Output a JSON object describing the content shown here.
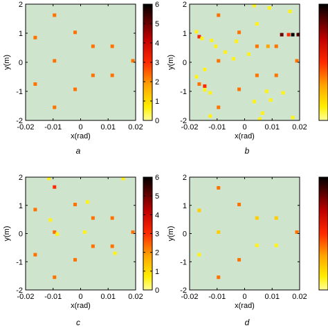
{
  "chart_data": [
    {
      "panel": "a",
      "type": "heatmap",
      "caption": "a",
      "xlabel": "x(rad)",
      "ylabel": "y(m)",
      "xlim": [
        -0.02,
        0.02
      ],
      "ylim": [
        -2,
        2
      ],
      "xticks": [
        "-0.02",
        "-0.01",
        "0",
        "0.01",
        "0.02"
      ],
      "yticks": [
        "2",
        "1",
        "0",
        "-1",
        "-2"
      ],
      "background_color": "#cfe4cc",
      "colorbar": {
        "min": 0,
        "max": 6,
        "ticks": [
          "6",
          "5",
          "4",
          "3",
          "2",
          "1",
          "0"
        ],
        "colormap": "hot_reversed"
      },
      "points": [
        {
          "x": -0.0095,
          "y": 1.62,
          "v": 2.3
        },
        {
          "x": -0.0165,
          "y": 0.85,
          "v": 2.3
        },
        {
          "x": -0.002,
          "y": 1.03,
          "v": 2.3
        },
        {
          "x": 0.0045,
          "y": 0.55,
          "v": 2.3
        },
        {
          "x": 0.0115,
          "y": 0.55,
          "v": 2.3
        },
        {
          "x": -0.0095,
          "y": 0.05,
          "v": 2.3
        },
        {
          "x": 0.019,
          "y": 0.05,
          "v": 2.3
        },
        {
          "x": 0.0045,
          "y": -0.45,
          "v": 2.3
        },
        {
          "x": 0.0115,
          "y": -0.45,
          "v": 2.3
        },
        {
          "x": -0.0165,
          "y": -0.75,
          "v": 2.3
        },
        {
          "x": -0.002,
          "y": -0.93,
          "v": 2.3
        },
        {
          "x": -0.0095,
          "y": -1.55,
          "v": 2.3
        }
      ]
    },
    {
      "panel": "b",
      "type": "heatmap",
      "caption": "b",
      "xlabel": "x(rad)",
      "ylabel": "y(m)",
      "xlim": [
        -0.02,
        0.02
      ],
      "ylim": [
        -2,
        2
      ],
      "xticks": [
        "-0.02",
        "-0.01",
        "0",
        "0.01",
        "0.02"
      ],
      "yticks": [
        "2",
        "1",
        "0",
        "-1",
        "-2"
      ],
      "background_color": "#cfe4cc",
      "colorbar": {
        "min": 0,
        "max": 6,
        "ticks": [],
        "colormap": "hot_reversed"
      },
      "points": [
        {
          "x": 0.0035,
          "y": 1.95,
          "v": 0.6
        },
        {
          "x": -0.0095,
          "y": 1.62,
          "v": 2.3
        },
        {
          "x": 0.009,
          "y": 1.87,
          "v": 0.6
        },
        {
          "x": 0.0165,
          "y": 1.75,
          "v": 0.6
        },
        {
          "x": -0.0175,
          "y": 1.05,
          "v": 0.6
        },
        {
          "x": -0.0165,
          "y": 0.88,
          "v": 3.2
        },
        {
          "x": -0.0155,
          "y": 0.82,
          "v": 0.6
        },
        {
          "x": -0.002,
          "y": 1.03,
          "v": 2.3
        },
        {
          "x": 0.0045,
          "y": 1.32,
          "v": 0.6
        },
        {
          "x": -0.012,
          "y": 0.75,
          "v": 0.6
        },
        {
          "x": -0.0105,
          "y": 0.55,
          "v": 0.6
        },
        {
          "x": -0.003,
          "y": 0.72,
          "v": 0.6
        },
        {
          "x": 0.0045,
          "y": 0.55,
          "v": 2.3
        },
        {
          "x": 0.0085,
          "y": 0.55,
          "v": 1.8
        },
        {
          "x": 0.0115,
          "y": 0.55,
          "v": 2.3
        },
        {
          "x": 0.0135,
          "y": 0.95,
          "v": 5.0
        },
        {
          "x": 0.016,
          "y": 0.95,
          "v": 3.0
        },
        {
          "x": 0.0175,
          "y": 0.95,
          "v": 6.0
        },
        {
          "x": 0.0195,
          "y": 0.95,
          "v": 5.2
        },
        {
          "x": -0.007,
          "y": 0.35,
          "v": 0.6
        },
        {
          "x": -0.0095,
          "y": 0.05,
          "v": 2.3
        },
        {
          "x": -0.004,
          "y": 0.12,
          "v": 0.6
        },
        {
          "x": 0.0015,
          "y": 0.28,
          "v": 0.6
        },
        {
          "x": 0.019,
          "y": 0.05,
          "v": 2.3
        },
        {
          "x": -0.0145,
          "y": -0.25,
          "v": 0.6
        },
        {
          "x": -0.0175,
          "y": -0.5,
          "v": 0.6
        },
        {
          "x": 0.0045,
          "y": -0.45,
          "v": 2.3
        },
        {
          "x": 0.0115,
          "y": -0.45,
          "v": 2.3
        },
        {
          "x": -0.0165,
          "y": -0.75,
          "v": 2.3
        },
        {
          "x": -0.0145,
          "y": -0.95,
          "v": 0.6
        },
        {
          "x": -0.002,
          "y": -0.93,
          "v": 2.3
        },
        {
          "x": -0.0145,
          "y": -0.82,
          "v": 3.0
        },
        {
          "x": -0.0125,
          "y": -1.05,
          "v": 0.6
        },
        {
          "x": 0.008,
          "y": -1.0,
          "v": 0.6
        },
        {
          "x": 0.014,
          "y": -1.05,
          "v": 0.6
        },
        {
          "x": 0.0095,
          "y": -1.3,
          "v": 0.6
        },
        {
          "x": 0.0035,
          "y": -1.35,
          "v": 0.6
        },
        {
          "x": -0.0095,
          "y": -1.55,
          "v": 2.3
        },
        {
          "x": -0.0125,
          "y": -1.85,
          "v": 0.6
        },
        {
          "x": 0.0065,
          "y": -1.75,
          "v": 0.6
        },
        {
          "x": 0.0055,
          "y": -1.95,
          "v": 0.6
        },
        {
          "x": 0.0175,
          "y": -1.9,
          "v": 0.6
        }
      ]
    },
    {
      "panel": "c",
      "type": "heatmap",
      "caption": "c",
      "xlabel": "x(rad)",
      "ylabel": "y(m)",
      "xlim": [
        -0.02,
        0.02
      ],
      "ylim": [
        -2,
        2
      ],
      "xticks": [
        "-0.02",
        "-0.01",
        "0",
        "0.01",
        "0.02"
      ],
      "yticks": [
        "2",
        "1",
        "0",
        "-1",
        "-2"
      ],
      "background_color": "#cfe4cc",
      "colorbar": {
        "min": 0,
        "max": 6,
        "ticks": [
          "6",
          "5",
          "4",
          "3",
          "2",
          "1",
          "0"
        ],
        "colormap": "hot_reversed"
      },
      "points": [
        {
          "x": -0.0115,
          "y": 1.95,
          "v": 0.6
        },
        {
          "x": 0.0155,
          "y": 1.95,
          "v": 0.6
        },
        {
          "x": -0.0095,
          "y": 1.65,
          "v": 3.0
        },
        {
          "x": -0.0165,
          "y": 0.85,
          "v": 2.3
        },
        {
          "x": -0.002,
          "y": 1.03,
          "v": 2.3
        },
        {
          "x": 0.0025,
          "y": 1.12,
          "v": 0.6
        },
        {
          "x": -0.011,
          "y": 0.48,
          "v": 0.6
        },
        {
          "x": 0.0045,
          "y": 0.55,
          "v": 2.3
        },
        {
          "x": 0.0115,
          "y": 0.55,
          "v": 2.3
        },
        {
          "x": -0.0095,
          "y": 0.05,
          "v": 2.3
        },
        {
          "x": -0.0085,
          "y": -0.02,
          "v": 0.6
        },
        {
          "x": 0.0015,
          "y": 0.05,
          "v": 0.6
        },
        {
          "x": 0.019,
          "y": 0.05,
          "v": 2.3
        },
        {
          "x": 0.0045,
          "y": -0.45,
          "v": 2.3
        },
        {
          "x": 0.0115,
          "y": -0.45,
          "v": 2.3
        },
        {
          "x": 0.0125,
          "y": -0.7,
          "v": 0.6
        },
        {
          "x": -0.0165,
          "y": -0.75,
          "v": 2.3
        },
        {
          "x": -0.002,
          "y": -0.93,
          "v": 2.3
        },
        {
          "x": -0.0095,
          "y": -1.55,
          "v": 2.3
        }
      ]
    },
    {
      "panel": "d",
      "type": "heatmap",
      "caption": "d",
      "xlabel": "x(rad)",
      "ylabel": "y(m)",
      "xlim": [
        -0.02,
        0.02
      ],
      "ylim": [
        -2,
        2
      ],
      "xticks": [
        "-0.02",
        "-0.01",
        "0",
        "0.01",
        "0.02"
      ],
      "yticks": [
        "2",
        "1",
        "0",
        "-1",
        "-2"
      ],
      "background_color": "#cfe4cc",
      "colorbar": {
        "min": 0,
        "max": 6,
        "ticks": [],
        "colormap": "hot_reversed"
      },
      "points": [
        {
          "x": -0.0095,
          "y": 1.62,
          "v": 2.3
        },
        {
          "x": -0.0165,
          "y": 0.82,
          "v": 1.2
        },
        {
          "x": -0.002,
          "y": 1.03,
          "v": 2.3
        },
        {
          "x": 0.0045,
          "y": 0.55,
          "v": 1.2
        },
        {
          "x": 0.0115,
          "y": 0.55,
          "v": 1.2
        },
        {
          "x": -0.0095,
          "y": 0.05,
          "v": 1.2
        },
        {
          "x": 0.019,
          "y": 0.05,
          "v": 2.3
        },
        {
          "x": 0.0045,
          "y": -0.42,
          "v": 0.6
        },
        {
          "x": 0.0115,
          "y": -0.42,
          "v": 0.6
        },
        {
          "x": -0.0165,
          "y": -0.75,
          "v": 0.6
        },
        {
          "x": -0.002,
          "y": -0.93,
          "v": 2.3
        },
        {
          "x": -0.0095,
          "y": -1.55,
          "v": 2.3
        }
      ]
    }
  ]
}
